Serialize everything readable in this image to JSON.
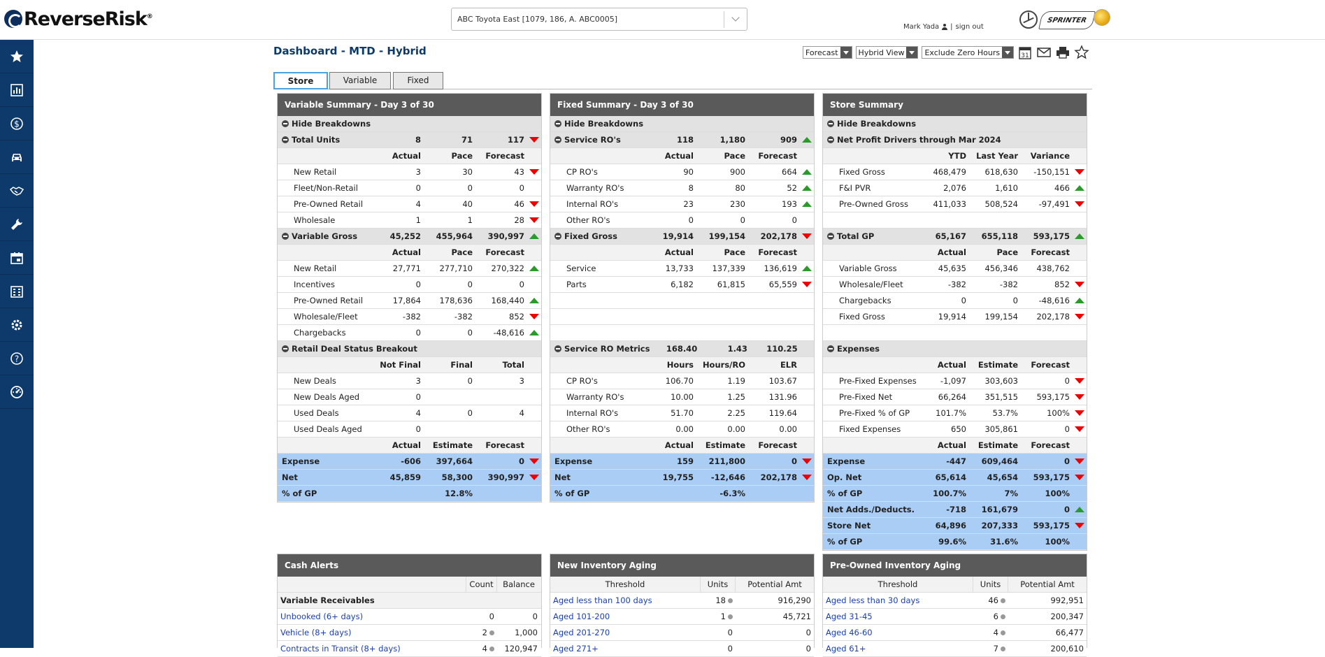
{
  "header": {
    "logo_text": "ReverseRisk",
    "logo_mark": "®",
    "store_select_value": "ABC Toyota East [1079, 186, A. ABC0005]",
    "user_name": "Mark Yada",
    "sign_out": "sign out",
    "brand_sprinter_text": "SPRINTER"
  },
  "sidebar": {
    "items": [
      {
        "name": "star-icon"
      },
      {
        "name": "chart-icon"
      },
      {
        "name": "dollar-icon"
      },
      {
        "name": "car-icon"
      },
      {
        "name": "handshake-icon"
      },
      {
        "name": "wrench-icon"
      },
      {
        "name": "calendar-icon"
      },
      {
        "name": "building-icon"
      },
      {
        "name": "gear-icon"
      },
      {
        "name": "help-icon"
      },
      {
        "name": "dashboard-icon"
      }
    ]
  },
  "title": "Dashboard - MTD - Hybrid",
  "controls": {
    "forecast": "Forecast",
    "view": "Hybrid View",
    "zero": "Exclude Zero Hours",
    "calendar_day": "31"
  },
  "tabs": [
    "Store",
    "Variable",
    "Fixed"
  ],
  "colors": {
    "accent": "#0e3a6b",
    "up": "#2a9a2a",
    "down": "#e00000",
    "highlight": "#a9cdf5"
  },
  "variable": {
    "title": "Variable Summary - Day 3 of 30",
    "hide": "Hide Breakdowns",
    "rows": [
      {
        "t": "sec",
        "l": "Total Units",
        "v": [
          "8",
          "71",
          "117"
        ],
        "f": "down"
      },
      {
        "t": "hdr",
        "l": "",
        "v": [
          "Actual",
          "Pace",
          "Forecast"
        ],
        "f": ""
      },
      {
        "t": "item",
        "l": "New Retail",
        "v": [
          "3",
          "30",
          "43"
        ],
        "f": "down"
      },
      {
        "t": "item",
        "l": "Fleet/Non-Retail",
        "v": [
          "0",
          "0",
          "0"
        ],
        "f": ""
      },
      {
        "t": "item",
        "l": "Pre-Owned Retail",
        "v": [
          "4",
          "40",
          "46"
        ],
        "f": "down"
      },
      {
        "t": "item",
        "l": "Wholesale",
        "v": [
          "1",
          "1",
          "28"
        ],
        "f": "down"
      },
      {
        "t": "sec",
        "l": "Variable Gross",
        "v": [
          "45,252",
          "455,964",
          "390,997"
        ],
        "f": "up"
      },
      {
        "t": "hdr",
        "l": "",
        "v": [
          "Actual",
          "Pace",
          "Forecast"
        ],
        "f": ""
      },
      {
        "t": "item",
        "l": "New Retail",
        "v": [
          "27,771",
          "277,710",
          "270,322"
        ],
        "f": "up"
      },
      {
        "t": "item",
        "l": "Incentives",
        "v": [
          "0",
          "0",
          "0"
        ],
        "f": ""
      },
      {
        "t": "item",
        "l": "Pre-Owned Retail",
        "v": [
          "17,864",
          "178,636",
          "168,440"
        ],
        "f": "up"
      },
      {
        "t": "item",
        "l": "Wholesale/Fleet",
        "v": [
          "-382",
          "-382",
          "852"
        ],
        "f": "down"
      },
      {
        "t": "item",
        "l": "Chargebacks",
        "v": [
          "0",
          "0",
          "-48,616"
        ],
        "f": "up"
      },
      {
        "t": "sec",
        "l": "Retail Deal Status Breakout",
        "v": [
          "",
          "",
          ""
        ],
        "f": ""
      },
      {
        "t": "hdr",
        "l": "",
        "v": [
          "Not Final",
          "Final",
          "Total"
        ],
        "f": ""
      },
      {
        "t": "item",
        "l": "New Deals",
        "v": [
          "3",
          "0",
          "3"
        ],
        "f": ""
      },
      {
        "t": "item",
        "l": "New Deals Aged",
        "v": [
          "0",
          "",
          ""
        ],
        "f": ""
      },
      {
        "t": "item",
        "l": "Used Deals",
        "v": [
          "4",
          "0",
          "4"
        ],
        "f": ""
      },
      {
        "t": "item",
        "l": "Used Deals Aged",
        "v": [
          "0",
          "",
          ""
        ],
        "f": ""
      },
      {
        "t": "hdr",
        "l": "",
        "v": [
          "Actual",
          "Estimate",
          "Forecast"
        ],
        "f": ""
      },
      {
        "t": "blue",
        "l": "Expense",
        "v": [
          "-606",
          "397,664",
          "0"
        ],
        "f": "down"
      },
      {
        "t": "blue",
        "l": "Net",
        "v": [
          "45,859",
          "58,300",
          "390,997"
        ],
        "f": "down"
      },
      {
        "t": "blue",
        "l": "% of GP",
        "v": [
          "",
          "12.8%",
          ""
        ],
        "f": ""
      }
    ]
  },
  "fixed": {
    "title": "Fixed Summary - Day 3 of 30",
    "hide": "Hide Breakdowns",
    "rows": [
      {
        "t": "sec",
        "l": "Service RO's",
        "v": [
          "118",
          "1,180",
          "909"
        ],
        "f": "up"
      },
      {
        "t": "hdr",
        "l": "",
        "v": [
          "Actual",
          "Pace",
          "Forecast"
        ],
        "f": ""
      },
      {
        "t": "item",
        "l": "CP RO's",
        "v": [
          "90",
          "900",
          "664"
        ],
        "f": "up"
      },
      {
        "t": "item",
        "l": "Warranty RO's",
        "v": [
          "8",
          "80",
          "52"
        ],
        "f": "up"
      },
      {
        "t": "item",
        "l": "Internal RO's",
        "v": [
          "23",
          "230",
          "193"
        ],
        "f": "up"
      },
      {
        "t": "item",
        "l": "Other RO's",
        "v": [
          "0",
          "0",
          "0"
        ],
        "f": ""
      },
      {
        "t": "sec",
        "l": "Fixed Gross",
        "v": [
          "19,914",
          "199,154",
          "202,178"
        ],
        "f": "down"
      },
      {
        "t": "hdr",
        "l": "",
        "v": [
          "Actual",
          "Pace",
          "Forecast"
        ],
        "f": ""
      },
      {
        "t": "item",
        "l": "Service",
        "v": [
          "13,733",
          "137,339",
          "136,619"
        ],
        "f": "up"
      },
      {
        "t": "item",
        "l": "Parts",
        "v": [
          "6,182",
          "61,815",
          "65,559"
        ],
        "f": "down"
      },
      {
        "t": "blank",
        "l": "",
        "v": [
          "",
          "",
          ""
        ],
        "f": ""
      },
      {
        "t": "blank",
        "l": "",
        "v": [
          "",
          "",
          ""
        ],
        "f": ""
      },
      {
        "t": "blank",
        "l": "",
        "v": [
          "",
          "",
          ""
        ],
        "f": ""
      },
      {
        "t": "sec",
        "l": "Service RO Metrics",
        "v": [
          "168.40",
          "1.43",
          "110.25"
        ],
        "f": ""
      },
      {
        "t": "hdr",
        "l": "",
        "v": [
          "Hours",
          "Hours/RO",
          "ELR"
        ],
        "f": ""
      },
      {
        "t": "item",
        "l": "CP RO's",
        "v": [
          "106.70",
          "1.19",
          "103.67"
        ],
        "f": ""
      },
      {
        "t": "item",
        "l": "Warranty RO's",
        "v": [
          "10.00",
          "1.25",
          "131.96"
        ],
        "f": ""
      },
      {
        "t": "item",
        "l": "Internal RO's",
        "v": [
          "51.70",
          "2.25",
          "119.64"
        ],
        "f": ""
      },
      {
        "t": "item",
        "l": "Other RO's",
        "v": [
          "0.00",
          "0.00",
          "0.00"
        ],
        "f": ""
      },
      {
        "t": "hdr",
        "l": "",
        "v": [
          "Actual",
          "Estimate",
          "Forecast"
        ],
        "f": ""
      },
      {
        "t": "blue",
        "l": "Expense",
        "v": [
          "159",
          "211,800",
          "0"
        ],
        "f": "down"
      },
      {
        "t": "blue",
        "l": "Net",
        "v": [
          "19,755",
          "-12,646",
          "202,178"
        ],
        "f": "down"
      },
      {
        "t": "blue",
        "l": "% of GP",
        "v": [
          "",
          "-6.3%",
          ""
        ],
        "f": ""
      }
    ]
  },
  "store": {
    "title": "Store Summary",
    "hide": "Hide Breakdowns",
    "rows": [
      {
        "t": "sec",
        "l": "Net Profit Drivers through Mar 2024",
        "v": [
          "",
          "",
          ""
        ],
        "f": ""
      },
      {
        "t": "hdr",
        "l": "",
        "v": [
          "YTD",
          "Last Year",
          "Variance"
        ],
        "f": ""
      },
      {
        "t": "item",
        "l": "Fixed Gross",
        "v": [
          "468,479",
          "618,630",
          "-150,151"
        ],
        "f": "down"
      },
      {
        "t": "item",
        "l": "F&I PVR",
        "v": [
          "2,076",
          "1,610",
          "466"
        ],
        "f": "up"
      },
      {
        "t": "item",
        "l": "Pre-Owned Gross",
        "v": [
          "411,033",
          "508,524",
          "-97,491"
        ],
        "f": "down"
      },
      {
        "t": "blank",
        "l": "",
        "v": [
          "",
          "",
          ""
        ],
        "f": ""
      },
      {
        "t": "sec",
        "l": "Total GP",
        "v": [
          "65,167",
          "655,118",
          "593,175"
        ],
        "f": "up"
      },
      {
        "t": "hdr",
        "l": "",
        "v": [
          "Actual",
          "Pace",
          "Forecast"
        ],
        "f": ""
      },
      {
        "t": "item",
        "l": "Variable Gross",
        "v": [
          "45,635",
          "456,346",
          "438,762"
        ],
        "f": ""
      },
      {
        "t": "item",
        "l": "Wholesale/Fleet",
        "v": [
          "-382",
          "-382",
          "852"
        ],
        "f": "down"
      },
      {
        "t": "item",
        "l": "Chargebacks",
        "v": [
          "0",
          "0",
          "-48,616"
        ],
        "f": "up"
      },
      {
        "t": "item",
        "l": "Fixed Gross",
        "v": [
          "19,914",
          "199,154",
          "202,178"
        ],
        "f": "down"
      },
      {
        "t": "blank",
        "l": "",
        "v": [
          "",
          "",
          ""
        ],
        "f": ""
      },
      {
        "t": "sec",
        "l": "Expenses",
        "v": [
          "",
          "",
          ""
        ],
        "f": ""
      },
      {
        "t": "hdr",
        "l": "",
        "v": [
          "Actual",
          "Estimate",
          "Forecast"
        ],
        "f": ""
      },
      {
        "t": "item",
        "l": "Pre-Fixed Expenses",
        "v": [
          "-1,097",
          "303,603",
          "0"
        ],
        "f": "down"
      },
      {
        "t": "item",
        "l": "Pre-Fixed Net",
        "v": [
          "66,264",
          "351,515",
          "593,175"
        ],
        "f": "down"
      },
      {
        "t": "item",
        "l": "Pre-Fixed % of GP",
        "v": [
          "101.7%",
          "53.7%",
          "100%"
        ],
        "f": "down"
      },
      {
        "t": "item",
        "l": "Fixed Expenses",
        "v": [
          "650",
          "305,861",
          "0"
        ],
        "f": "down"
      },
      {
        "t": "hdr",
        "l": "",
        "v": [
          "Actual",
          "Estimate",
          "Forecast"
        ],
        "f": ""
      },
      {
        "t": "blue",
        "l": "Expense",
        "v": [
          "-447",
          "609,464",
          "0"
        ],
        "f": "down"
      },
      {
        "t": "blue",
        "l": "Op. Net",
        "v": [
          "65,614",
          "45,654",
          "593,175"
        ],
        "f": "down"
      },
      {
        "t": "blue",
        "l": "% of GP",
        "v": [
          "100.7%",
          "7%",
          "100%"
        ],
        "f": ""
      },
      {
        "t": "blue",
        "l": "Net Adds./Deducts.",
        "v": [
          "-718",
          "161,679",
          "0"
        ],
        "f": "up"
      },
      {
        "t": "blue",
        "l": "Store Net",
        "v": [
          "64,896",
          "207,333",
          "593,175"
        ],
        "f": "down"
      },
      {
        "t": "blue",
        "l": "% of GP",
        "v": [
          "99.6%",
          "31.6%",
          "100%"
        ],
        "f": ""
      }
    ]
  },
  "cash": {
    "title": "Cash Alerts",
    "cols": [
      "",
      "Count",
      "Balance"
    ],
    "sub": "Variable Receivables",
    "rows": [
      {
        "l": "Unbooked (6+ days)",
        "c": "0",
        "b": "0",
        "i": false
      },
      {
        "l": "Vehicle (8+ days)",
        "c": "2",
        "b": "1,000",
        "i": true
      },
      {
        "l": "Contracts in Transit (8+ days)",
        "c": "4",
        "b": "120,947",
        "i": true
      }
    ]
  },
  "newinv": {
    "title": "New Inventory Aging",
    "cols": [
      "Threshold",
      "Units",
      "Potential Amt"
    ],
    "rows": [
      {
        "l": "Aged less than 100 days",
        "u": "18",
        "a": "916,290",
        "i": true
      },
      {
        "l": "Aged 101-200",
        "u": "1",
        "a": "45,721",
        "i": true
      },
      {
        "l": "Aged 201-270",
        "u": "0",
        "a": "0",
        "i": false
      },
      {
        "l": "Aged 271+",
        "u": "0",
        "a": "0",
        "i": false
      }
    ]
  },
  "preinv": {
    "title": "Pre-Owned Inventory Aging",
    "cols": [
      "Threshold",
      "Units",
      "Potential Amt"
    ],
    "rows": [
      {
        "l": "Aged less than 30 days",
        "u": "46",
        "a": "992,951",
        "i": true
      },
      {
        "l": "Aged 31-45",
        "u": "6",
        "a": "200,347",
        "i": true
      },
      {
        "l": "Aged 46-60",
        "u": "4",
        "a": "66,477",
        "i": true
      },
      {
        "l": "Aged 61+",
        "u": "7",
        "a": "200,610",
        "i": true
      }
    ]
  }
}
